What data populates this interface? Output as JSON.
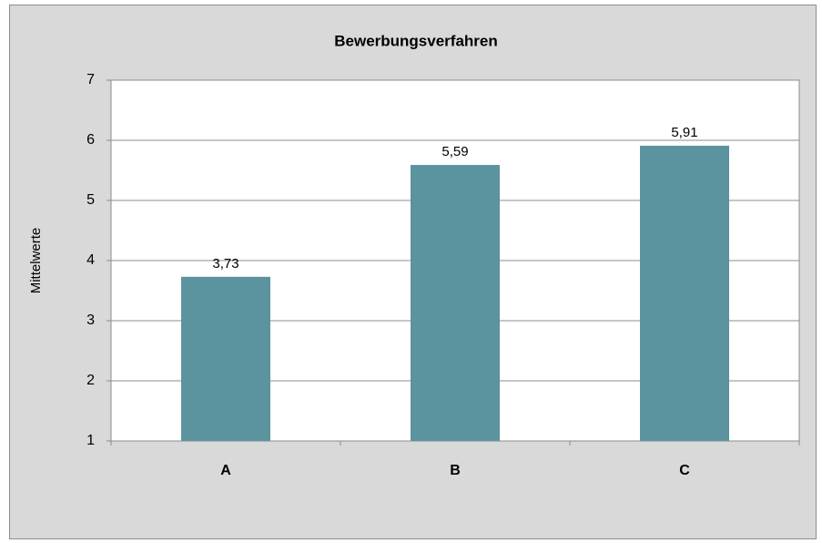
{
  "chart_data": {
    "type": "bar",
    "title": "Bewerbungsverfahren",
    "y_label": "Mittelwerte",
    "categories": [
      "A",
      "B",
      "C"
    ],
    "values": [
      3.73,
      5.59,
      5.91
    ],
    "value_labels": [
      "3,73",
      "5,59",
      "5,91"
    ],
    "color": "#5b949e",
    "ylim": [
      1,
      7
    ],
    "yticks": [
      1,
      2,
      3,
      4,
      5,
      6,
      7
    ],
    "grid": true
  }
}
